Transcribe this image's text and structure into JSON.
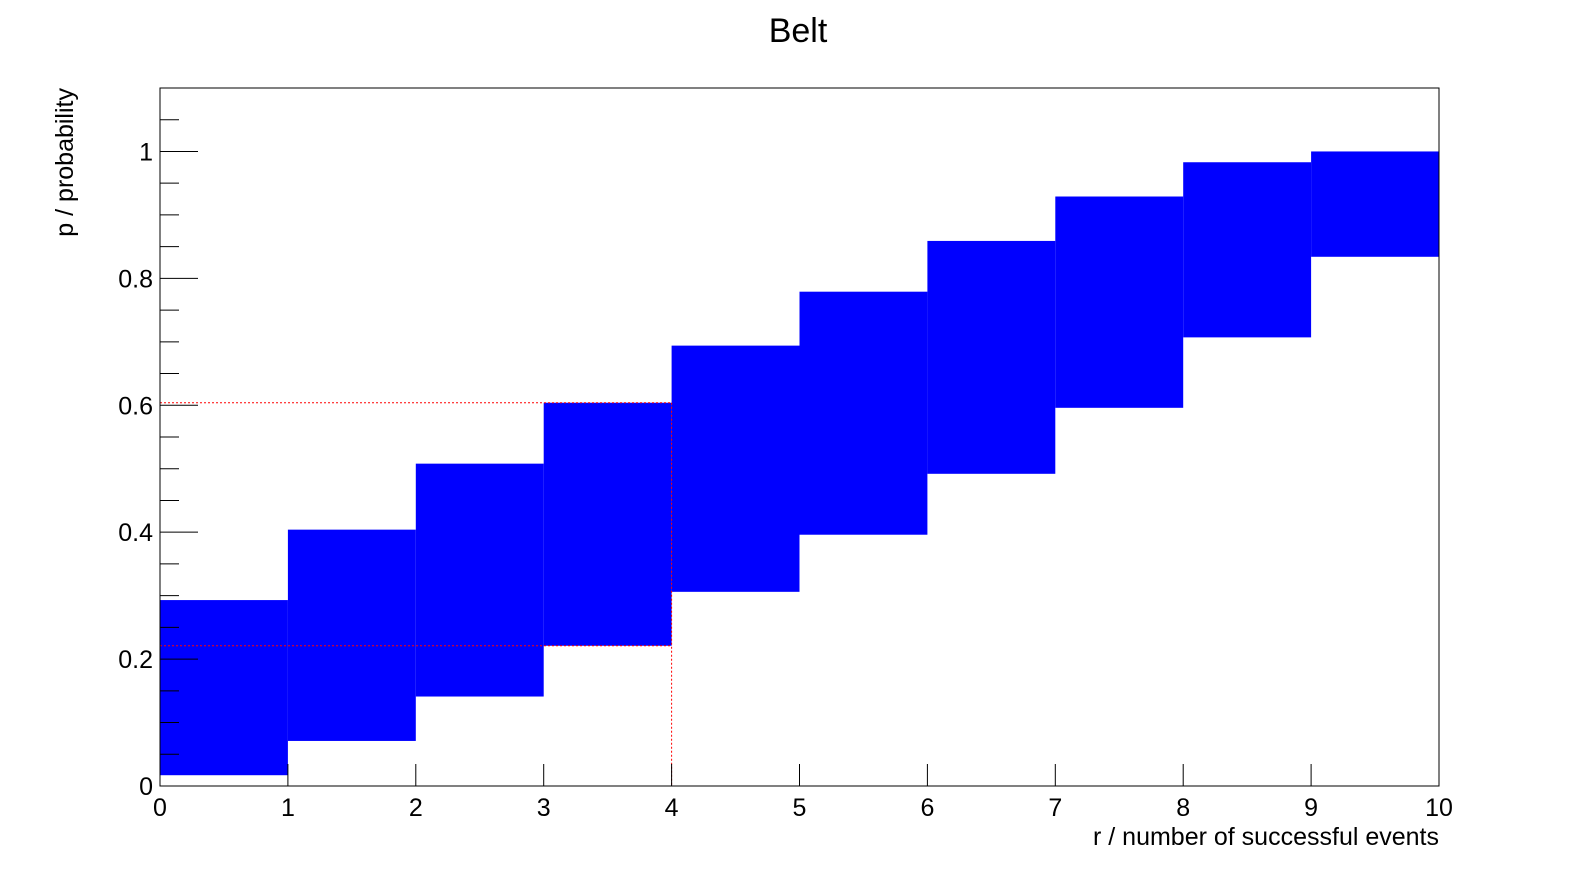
{
  "chart_data": {
    "type": "area",
    "title": "Belt",
    "xlabel": "r / number of successful events",
    "ylabel": "p / probability",
    "xlim": [
      0,
      10
    ],
    "ylim": [
      0,
      1.1
    ],
    "grid": false,
    "colors": {
      "belt": "#0000ff",
      "guide": "#ff0000",
      "axis": "#000000"
    },
    "x_ticks": [
      0,
      1,
      2,
      3,
      4,
      5,
      6,
      7,
      8,
      9,
      10
    ],
    "x_tick_labels": [
      "0",
      "1",
      "2",
      "3",
      "4",
      "5",
      "6",
      "7",
      "8",
      "9",
      "10"
    ],
    "y_ticks": [
      0,
      0.2,
      0.4,
      0.6,
      0.8,
      1
    ],
    "y_tick_labels": [
      "0",
      "0.2",
      "0.4",
      "0.6",
      "0.8",
      "1"
    ],
    "y_minor_step": 0.05,
    "belt": [
      {
        "r": 0,
        "lower": 0.017,
        "upper": 0.293
      },
      {
        "r": 1,
        "lower": 0.071,
        "upper": 0.404
      },
      {
        "r": 2,
        "lower": 0.141,
        "upper": 0.508
      },
      {
        "r": 3,
        "lower": 0.221,
        "upper": 0.604
      },
      {
        "r": 4,
        "lower": 0.306,
        "upper": 0.694
      },
      {
        "r": 5,
        "lower": 0.396,
        "upper": 0.779
      },
      {
        "r": 6,
        "lower": 0.492,
        "upper": 0.859
      },
      {
        "r": 7,
        "lower": 0.596,
        "upper": 0.929
      },
      {
        "r": 8,
        "lower": 0.707,
        "upper": 0.983
      },
      {
        "r": 9,
        "lower": 0.834,
        "upper": 1.0
      }
    ],
    "guides": {
      "x": 4,
      "y_upper": 0.604,
      "y_lower": 0.221
    }
  }
}
